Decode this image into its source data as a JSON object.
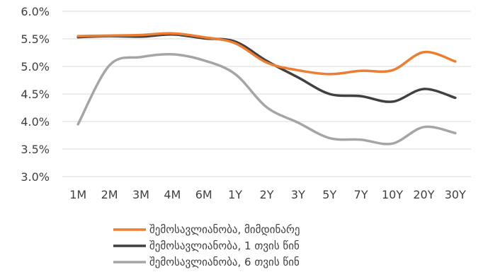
{
  "chart_data": {
    "type": "line",
    "categories": [
      "1M",
      "2M",
      "3M",
      "4M",
      "6M",
      "1Y",
      "2Y",
      "3Y",
      "5Y",
      "7Y",
      "10Y",
      "20Y",
      "30Y"
    ],
    "ylim": [
      0.03,
      0.06
    ],
    "yticks": [
      "6.0%",
      "5.5%",
      "5.0%",
      "4.5%",
      "4.0%",
      "3.5%",
      "3.0%"
    ],
    "ytick_values": [
      0.06,
      0.055,
      0.05,
      0.045,
      0.04,
      0.035,
      0.03
    ],
    "grid": true,
    "legend_position": "bottom",
    "series": [
      {
        "name": "შემოსავლიანობა, მიმდინარე",
        "color": "#ED7D31",
        "values": [
          0.0555,
          0.0556,
          0.0557,
          0.056,
          0.0553,
          0.0542,
          0.0507,
          0.0493,
          0.0486,
          0.0492,
          0.0493,
          0.0526,
          0.0509
        ]
      },
      {
        "name": "შემოსავლიანობა, 1 თვის წინ",
        "color": "#404040",
        "values": [
          0.0553,
          0.0555,
          0.0554,
          0.0558,
          0.0551,
          0.0545,
          0.051,
          0.048,
          0.045,
          0.0446,
          0.0436,
          0.0459,
          0.0443
        ]
      },
      {
        "name": "შემოსავლიანობა, 6 თვის წინ",
        "color": "#A5A5A5",
        "values": [
          0.0395,
          0.0502,
          0.0517,
          0.0522,
          0.0511,
          0.0486,
          0.0426,
          0.0398,
          0.037,
          0.0367,
          0.036,
          0.039,
          0.0379
        ]
      }
    ]
  }
}
